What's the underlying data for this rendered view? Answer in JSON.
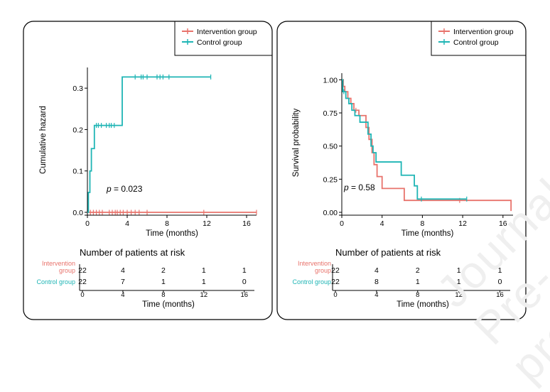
{
  "watermark": "Journal Pre-proof",
  "colors": {
    "intervention": "#E8736C",
    "control": "#1FB5B5",
    "axis": "#000000",
    "risk_label_intervention": "#E8736C",
    "risk_label_control": "#1FB5B5"
  },
  "chart_data": [
    {
      "type": "line",
      "id": "hazard",
      "ylabel": "Cumulative hazard",
      "xlabel": "Time (months)",
      "xlim": [
        0,
        17
      ],
      "ylim": [
        0,
        0.35
      ],
      "x_ticks": [
        0,
        4,
        8,
        12,
        16
      ],
      "y_ticks": [
        0.0,
        0.1,
        0.2,
        0.3
      ],
      "y_tick_labels": [
        "0.0",
        "0.1",
        "0.2",
        "0.3"
      ],
      "pvalue": "0.023",
      "legend": [
        "Intervention group",
        "Control group"
      ],
      "series": [
        {
          "name": "Intervention group",
          "color_key": "intervention",
          "steps": [
            [
              0,
              0
            ],
            [
              17,
              0
            ]
          ],
          "censor": [
            0.3,
            0.6,
            0.9,
            1.2,
            1.5,
            2.2,
            2.5,
            2.8,
            3.0,
            3.3,
            3.6,
            4.0,
            4.4,
            4.8,
            5.2,
            6.0,
            11.7,
            17.0
          ]
        },
        {
          "name": "Control group",
          "color_key": "control",
          "steps": [
            [
              0,
              0
            ],
            [
              0.1,
              0.048
            ],
            [
              0.25,
              0.1
            ],
            [
              0.4,
              0.154
            ],
            [
              0.7,
              0.21
            ],
            [
              3.5,
              0.21
            ],
            [
              3.5,
              0.327
            ],
            [
              12.4,
              0.327
            ]
          ],
          "censor": [
            0.9,
            1.1,
            1.4,
            1.9,
            2.2,
            2.4,
            2.7,
            4.8,
            5.4,
            5.6,
            6.0,
            7.0,
            7.3,
            7.6,
            8.2,
            12.4
          ]
        }
      ],
      "risk_table": {
        "title": "Number of patients at risk",
        "x_label": "Time (months)",
        "rows": [
          {
            "label_line1": "Intervention",
            "label_line2": "group",
            "color_key": "intervention",
            "values": [
              "22",
              "4",
              "2",
              "1",
              "1"
            ]
          },
          {
            "label_line1": "Control group",
            "label_line2": "",
            "color_key": "control",
            "values": [
              "22",
              "7",
              "1",
              "1",
              "0"
            ]
          }
        ],
        "times": [
          "0",
          "4",
          "8",
          "12",
          "16"
        ]
      }
    },
    {
      "type": "line",
      "id": "survival",
      "ylabel": "Survival probability",
      "xlabel": "Time (months)",
      "xlim": [
        0,
        17
      ],
      "ylim": [
        0,
        1.05
      ],
      "x_ticks": [
        0,
        4,
        8,
        12,
        16
      ],
      "y_ticks": [
        0,
        0.25,
        0.5,
        0.75,
        1.0
      ],
      "y_tick_labels": [
        "0.00",
        "0.25",
        "0.50",
        "0.75",
        "1.00"
      ],
      "pvalue": "0.58",
      "legend": [
        "Intervention group",
        "Control group"
      ],
      "series": [
        {
          "name": "Intervention group",
          "color_key": "intervention",
          "steps": [
            [
              0,
              1.0
            ],
            [
              0.15,
              0.95
            ],
            [
              0.3,
              0.91
            ],
            [
              0.6,
              0.86
            ],
            [
              0.9,
              0.82
            ],
            [
              1.2,
              0.77
            ],
            [
              1.7,
              0.73
            ],
            [
              2.4,
              0.64
            ],
            [
              2.7,
              0.55
            ],
            [
              3.0,
              0.45
            ],
            [
              3.2,
              0.36
            ],
            [
              3.5,
              0.27
            ],
            [
              4.0,
              0.18
            ],
            [
              6.0,
              0.18
            ],
            [
              6.2,
              0.09
            ],
            [
              16.8,
              0.09
            ],
            [
              16.8,
              0.01
            ]
          ],
          "censor": [
            1.4,
            11.7
          ]
        },
        {
          "name": "Control group",
          "color_key": "control",
          "steps": [
            [
              0,
              1.0
            ],
            [
              0.1,
              0.91
            ],
            [
              0.4,
              0.86
            ],
            [
              0.7,
              0.82
            ],
            [
              1.0,
              0.77
            ],
            [
              1.3,
              0.73
            ],
            [
              1.8,
              0.68
            ],
            [
              2.6,
              0.59
            ],
            [
              2.9,
              0.5
            ],
            [
              3.1,
              0.45
            ],
            [
              3.4,
              0.38
            ],
            [
              5.9,
              0.38
            ],
            [
              5.9,
              0.28
            ],
            [
              7.2,
              0.2
            ],
            [
              7.5,
              0.1
            ],
            [
              12.4,
              0.1
            ]
          ],
          "censor": [
            0.2,
            7.9,
            12.4
          ]
        }
      ],
      "risk_table": {
        "title": "Number of patients at risk",
        "x_label": "Time (months)",
        "rows": [
          {
            "label_line1": "Intervention",
            "label_line2": "group",
            "color_key": "intervention",
            "values": [
              "22",
              "4",
              "2",
              "1",
              "1"
            ]
          },
          {
            "label_line1": "Control group",
            "label_line2": "",
            "color_key": "control",
            "values": [
              "22",
              "8",
              "1",
              "1",
              "0"
            ]
          }
        ],
        "times": [
          "0",
          "4",
          "8",
          "12",
          "16"
        ]
      }
    }
  ]
}
